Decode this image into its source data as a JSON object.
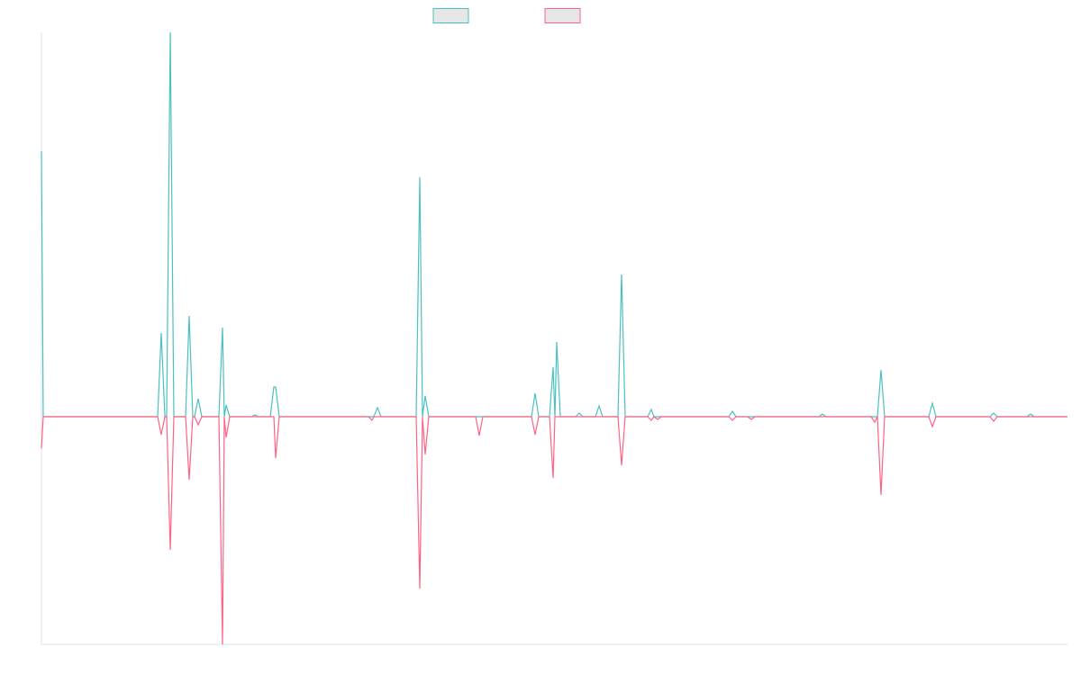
{
  "chart_data": {
    "type": "line",
    "legend": "top",
    "legend_fill": "#e6e6e6",
    "xlim": [
      0,
      1139
    ],
    "ylim": [
      -253,
      427
    ],
    "x": [
      0,
      2,
      129,
      133,
      137,
      139,
      143,
      147,
      160,
      164,
      168,
      170,
      174,
      178,
      197,
      201,
      203,
      205,
      209,
      233,
      237,
      241,
      254,
      258,
      260,
      264,
      363,
      367,
      369,
      373,
      377,
      416,
      420,
      423,
      426,
      430,
      482,
      486,
      490,
      544,
      548,
      552,
      564,
      568,
      570,
      572,
      576,
      593,
      597,
      601,
      615,
      619,
      623,
      640,
      644,
      648,
      673,
      677,
      680,
      684,
      688,
      763,
      767,
      771,
      784,
      788,
      792,
      863,
      867,
      871,
      921,
      925,
      928,
      932,
      936,
      985,
      989,
      993,
      1053,
      1057,
      1061,
      1094,
      1098,
      1102,
      1139
    ],
    "series": [
      {
        "color": "#4bc0c0",
        "values": [
          295,
          0,
          0,
          93,
          0,
          0,
          427,
          0,
          0,
          112,
          0,
          0,
          20,
          0,
          0,
          99,
          0,
          13,
          0,
          0,
          2,
          0,
          0,
          33,
          33,
          0,
          0,
          0,
          0,
          10,
          0,
          0,
          266,
          0,
          23,
          0,
          0,
          0,
          0,
          0,
          26,
          0,
          0,
          55,
          0,
          83,
          0,
          0,
          4,
          0,
          0,
          12,
          0,
          0,
          158,
          0,
          0,
          8,
          0,
          0,
          0,
          0,
          6,
          0,
          0,
          0,
          0,
          0,
          3,
          0,
          0,
          0,
          0,
          52,
          0,
          0,
          15,
          0,
          0,
          4,
          0,
          0,
          3,
          0,
          0
        ]
      },
      {
        "color": "#ff6384",
        "values": [
          -35,
          0,
          0,
          -20,
          0,
          0,
          -148,
          0,
          0,
          -70,
          0,
          0,
          -9,
          0,
          0,
          -253,
          0,
          -23,
          0,
          0,
          0,
          0,
          0,
          0,
          -46,
          0,
          0,
          -4,
          0,
          0,
          0,
          0,
          -191,
          0,
          -42,
          0,
          0,
          -21,
          0,
          0,
          -20,
          0,
          0,
          -68,
          0,
          0,
          0,
          0,
          0,
          0,
          0,
          0,
          0,
          0,
          -54,
          0,
          0,
          -4,
          0,
          -3,
          0,
          0,
          -4,
          0,
          0,
          -3,
          0,
          0,
          0,
          0,
          0,
          -6,
          0,
          -87,
          0,
          0,
          -11,
          0,
          0,
          -5,
          0,
          0,
          0,
          0,
          0
        ]
      }
    ]
  }
}
